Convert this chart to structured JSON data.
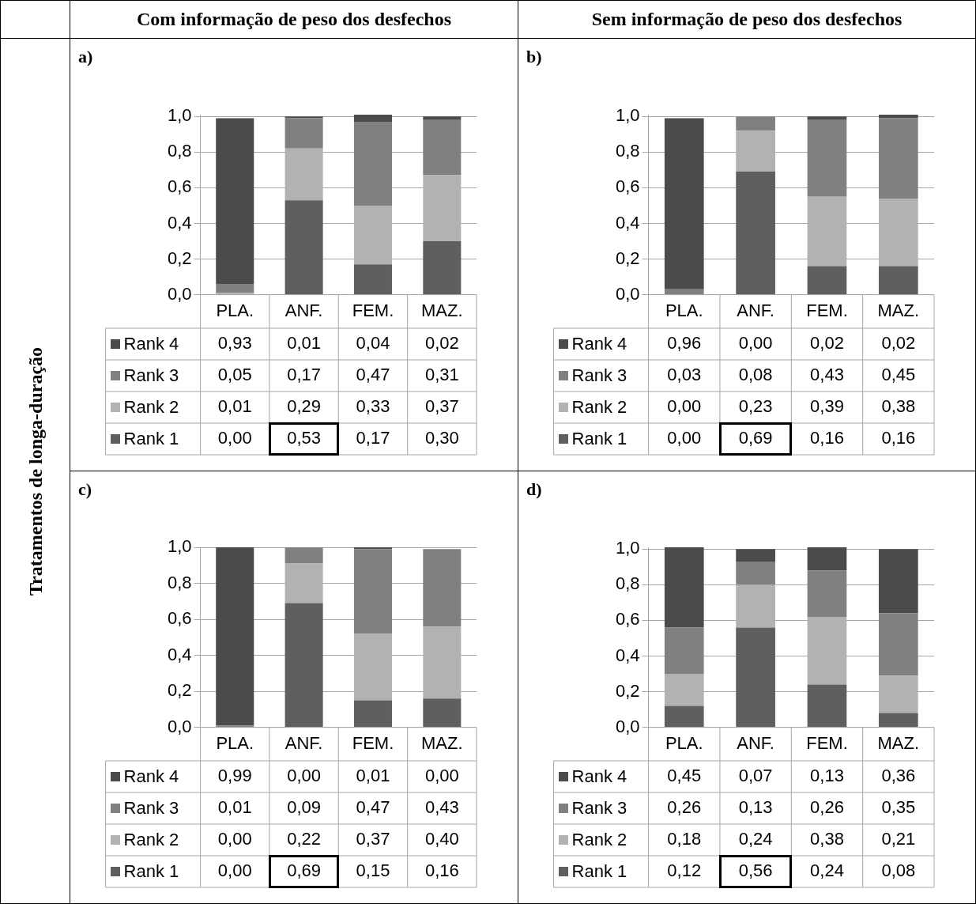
{
  "chart_data": [
    {
      "type": "bar",
      "title": "a)",
      "annotations": [
        "Com informação de peso dos desfechos",
        "Tratamentos de longa-duração"
      ],
      "stacked": true,
      "categories": [
        "PLA.",
        "ANF.",
        "FEM.",
        "MAZ."
      ],
      "series": [
        {
          "name": "Rank 1",
          "color": "#5f5f5f",
          "values": [
            0.0,
            0.53,
            0.17,
            0.3
          ],
          "value_labels": [
            "0,00",
            "0,53",
            "0,17",
            "0,30"
          ]
        },
        {
          "name": "Rank 2",
          "color": "#b2b2b2",
          "values": [
            0.01,
            0.29,
            0.33,
            0.37
          ],
          "value_labels": [
            "0,01",
            "0,29",
            "0,33",
            "0,37"
          ]
        },
        {
          "name": "Rank 3",
          "color": "#808080",
          "values": [
            0.05,
            0.17,
            0.47,
            0.31
          ],
          "value_labels": [
            "0,05",
            "0,17",
            "0,47",
            "0,31"
          ]
        },
        {
          "name": "Rank 4",
          "color": "#4b4b4b",
          "values": [
            0.93,
            0.01,
            0.04,
            0.02
          ],
          "value_labels": [
            "0,93",
            "0,01",
            "0,04",
            "0,02"
          ]
        }
      ],
      "ylim": [
        0,
        1.01
      ],
      "yticks": [
        {
          "value": 0,
          "label": "0,0"
        },
        {
          "value": 0.2,
          "label": "0,2"
        },
        {
          "value": 0.4,
          "label": "0,4"
        },
        {
          "value": 0.6,
          "label": "0,6"
        },
        {
          "value": 0.8,
          "label": "0,8"
        },
        {
          "value": 1,
          "label": "1,0"
        }
      ],
      "grid": "y",
      "legend": "bottom"
    },
    {
      "type": "bar",
      "title": "b)",
      "annotations": [
        "Sem informação de peso dos desfechos"
      ],
      "stacked": true,
      "categories": [
        "PLA.",
        "ANF.",
        "FEM.",
        "MAZ."
      ],
      "series": [
        {
          "name": "Rank 1",
          "color": "#5f5f5f",
          "values": [
            0.0,
            0.69,
            0.16,
            0.16
          ],
          "value_labels": [
            "0,00",
            "0,69",
            "0,16",
            "0,16"
          ]
        },
        {
          "name": "Rank 2",
          "color": "#b2b2b2",
          "values": [
            0.0,
            0.23,
            0.39,
            0.38
          ],
          "value_labels": [
            "0,00",
            "0,23",
            "0,39",
            "0,38"
          ]
        },
        {
          "name": "Rank 3",
          "color": "#808080",
          "values": [
            0.03,
            0.08,
            0.43,
            0.45
          ],
          "value_labels": [
            "0,03",
            "0,08",
            "0,43",
            "0,45"
          ]
        },
        {
          "name": "Rank 4",
          "color": "#4b4b4b",
          "values": [
            0.96,
            0.0,
            0.02,
            0.02
          ],
          "value_labels": [
            "0,96",
            "0,00",
            "0,02",
            "0,02"
          ]
        }
      ],
      "ylim": [
        0,
        1.01
      ],
      "yticks": [
        {
          "value": 0,
          "label": "0,0"
        },
        {
          "value": 0.2,
          "label": "0,2"
        },
        {
          "value": 0.4,
          "label": "0,4"
        },
        {
          "value": 0.6,
          "label": "0,6"
        },
        {
          "value": 0.8,
          "label": "0,8"
        },
        {
          "value": 1,
          "label": "1,0"
        }
      ],
      "grid": "y",
      "legend": "bottom"
    },
    {
      "type": "bar",
      "title": "c)",
      "stacked": true,
      "categories": [
        "PLA.",
        "ANF.",
        "FEM.",
        "MAZ."
      ],
      "series": [
        {
          "name": "Rank 1",
          "color": "#5f5f5f",
          "values": [
            0.0,
            0.69,
            0.15,
            0.16
          ],
          "value_labels": [
            "0,00",
            "0,69",
            "0,15",
            "0,16"
          ]
        },
        {
          "name": "Rank 2",
          "color": "#b2b2b2",
          "values": [
            0.0,
            0.22,
            0.37,
            0.4
          ],
          "value_labels": [
            "0,00",
            "0,22",
            "0,37",
            "0,40"
          ]
        },
        {
          "name": "Rank 3",
          "color": "#808080",
          "values": [
            0.01,
            0.09,
            0.47,
            0.43
          ],
          "value_labels": [
            "0,01",
            "0,09",
            "0,47",
            "0,43"
          ]
        },
        {
          "name": "Rank 4",
          "color": "#4b4b4b",
          "values": [
            0.99,
            0.0,
            0.01,
            0.0
          ],
          "value_labels": [
            "0,99",
            "0,00",
            "0,01",
            "0,00"
          ]
        }
      ],
      "ylim": [
        0,
        1
      ],
      "yticks": [
        {
          "value": 0,
          "label": "0,0"
        },
        {
          "value": 0.2,
          "label": "0,2"
        },
        {
          "value": 0.4,
          "label": "0,4"
        },
        {
          "value": 0.6,
          "label": "0,6"
        },
        {
          "value": 0.8,
          "label": "0,8"
        },
        {
          "value": 1,
          "label": "1,0"
        }
      ],
      "grid": "y",
      "legend": "bottom"
    },
    {
      "type": "bar",
      "title": "d)",
      "stacked": true,
      "categories": [
        "PLA.",
        "ANF.",
        "FEM.",
        "MAZ."
      ],
      "series": [
        {
          "name": "Rank 1",
          "color": "#5f5f5f",
          "values": [
            0.12,
            0.56,
            0.24,
            0.08
          ],
          "value_labels": [
            "0,12",
            "0,56",
            "0,24",
            "0,08"
          ]
        },
        {
          "name": "Rank 2",
          "color": "#b2b2b2",
          "values": [
            0.18,
            0.24,
            0.38,
            0.21
          ],
          "value_labels": [
            "0,18",
            "0,24",
            "0,38",
            "0,21"
          ]
        },
        {
          "name": "Rank 3",
          "color": "#808080",
          "values": [
            0.26,
            0.13,
            0.26,
            0.35
          ],
          "value_labels": [
            "0,26",
            "0,13",
            "0,26",
            "0,35"
          ]
        },
        {
          "name": "Rank 4",
          "color": "#4b4b4b",
          "values": [
            0.45,
            0.07,
            0.13,
            0.36
          ],
          "value_labels": [
            "0,45",
            "0,07",
            "0,13",
            "0,36"
          ]
        }
      ],
      "ylim": [
        0,
        1.01
      ],
      "yticks": [
        {
          "value": 0,
          "label": "0,0"
        },
        {
          "value": 0.2,
          "label": "0,2"
        },
        {
          "value": 0.4,
          "label": "0,4"
        },
        {
          "value": 0.6,
          "label": "0,6"
        },
        {
          "value": 0.8,
          "label": "0,8"
        },
        {
          "value": 1,
          "label": "1,0"
        }
      ],
      "grid": "y",
      "legend": "bottom"
    }
  ]
}
